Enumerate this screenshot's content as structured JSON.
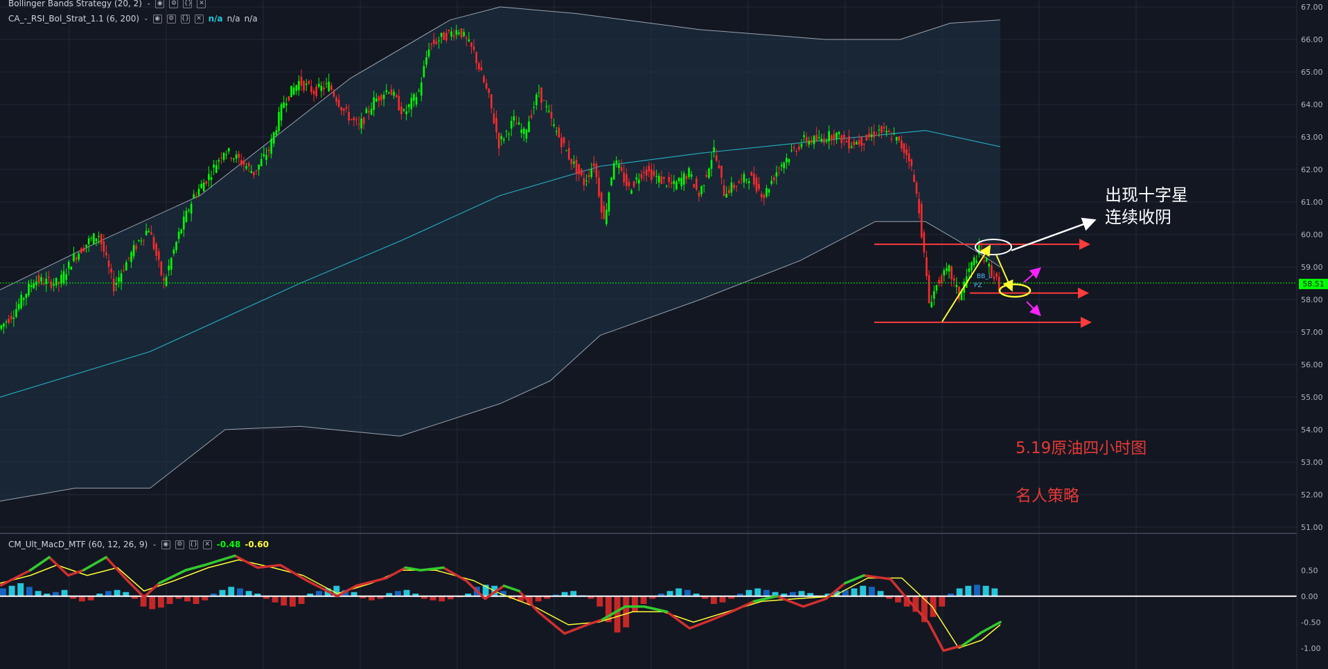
{
  "legends": {
    "bb": {
      "name": "Bollinger Bands Strategy (20, 2)"
    },
    "rsi": {
      "name": "CA_-_RSI_Bol_Strat_1.1 (6, 200)",
      "v1": "n/a",
      "v2": "n/a",
      "v3": "n/a"
    },
    "macd": {
      "name": "CM_Ult_MacD_MTF (60, 12, 26, 9)",
      "v1": "-0.48",
      "v2": "-0.60"
    }
  },
  "annotations": {
    "doji_line1": "出现十字星",
    "doji_line2": "连续收阴",
    "title": "5.19原油四小时图",
    "brand": "名人策略",
    "bb_tag": "BB_L",
    "pz_tag": "PZ"
  },
  "colors": {
    "background": "#131722",
    "up": "#00ff00",
    "down": "#ff2a2a",
    "band_fill": "#1e3347",
    "middle_band": "#26a6b8",
    "annotation_red": "#ff3b3b",
    "arrow_white": "#ffffff",
    "arrow_yellow": "#ffff33",
    "arrow_magenta": "#ff22ff"
  },
  "chart_data": [
    {
      "type": "candlestick",
      "title": "",
      "ylim": [
        51.0,
        67.0
      ],
      "y_ticks": [
        "67.00",
        "66.00",
        "65.00",
        "64.00",
        "63.00",
        "62.00",
        "61.00",
        "60.00",
        "59.00",
        "58.00",
        "57.00",
        "56.00",
        "55.00",
        "54.00",
        "53.00",
        "52.00",
        "51.00"
      ],
      "last_price": "58.51",
      "price_path": [
        [
          0,
          57.1
        ],
        [
          6,
          57.6
        ],
        [
          14,
          58.6
        ],
        [
          24,
          58.5
        ],
        [
          30,
          59.3
        ],
        [
          36,
          59.8
        ],
        [
          40,
          60.0
        ],
        [
          46,
          58.4
        ],
        [
          50,
          59.0
        ],
        [
          56,
          59.8
        ],
        [
          60,
          60.2
        ],
        [
          66,
          58.5
        ],
        [
          72,
          60.0
        ],
        [
          78,
          61.2
        ],
        [
          84,
          61.8
        ],
        [
          90,
          62.6
        ],
        [
          96,
          62.3
        ],
        [
          102,
          61.9
        ],
        [
          108,
          62.6
        ],
        [
          114,
          64.1
        ],
        [
          120,
          64.7
        ],
        [
          126,
          64.4
        ],
        [
          132,
          64.6
        ],
        [
          138,
          63.8
        ],
        [
          144,
          63.3
        ],
        [
          150,
          64.1
        ],
        [
          156,
          64.5
        ],
        [
          162,
          63.7
        ],
        [
          168,
          64.4
        ],
        [
          172,
          65.8
        ],
        [
          178,
          66.1
        ],
        [
          184,
          66.3
        ],
        [
          190,
          65.6
        ],
        [
          196,
          64.2
        ],
        [
          200,
          62.8
        ],
        [
          206,
          63.5
        ],
        [
          210,
          63.1
        ],
        [
          216,
          64.4
        ],
        [
          222,
          63.3
        ],
        [
          228,
          62.4
        ],
        [
          234,
          61.6
        ],
        [
          238,
          62.2
        ],
        [
          242,
          60.4
        ],
        [
          246,
          62.3
        ],
        [
          252,
          61.4
        ],
        [
          258,
          62.0
        ],
        [
          264,
          61.7
        ],
        [
          270,
          61.5
        ],
        [
          276,
          61.9
        ],
        [
          280,
          61.2
        ],
        [
          286,
          62.6
        ],
        [
          290,
          61.3
        ],
        [
          296,
          61.6
        ],
        [
          300,
          61.8
        ],
        [
          306,
          61.2
        ],
        [
          312,
          62.1
        ],
        [
          318,
          62.6
        ],
        [
          322,
          62.9
        ],
        [
          328,
          62.9
        ],
        [
          334,
          63.1
        ],
        [
          340,
          62.8
        ],
        [
          346,
          62.9
        ],
        [
          352,
          63.2
        ],
        [
          358,
          63.0
        ],
        [
          364,
          62.4
        ],
        [
          368,
          60.8
        ],
        [
          372,
          57.9
        ],
        [
          376,
          58.6
        ],
        [
          380,
          58.9
        ],
        [
          384,
          58.1
        ],
        [
          388,
          58.9
        ],
        [
          392,
          59.5
        ],
        [
          396,
          59.0
        ],
        [
          400,
          58.4
        ]
      ],
      "bands": {
        "upper": [
          [
            0,
            58.3
          ],
          [
            40,
            59.8
          ],
          [
            80,
            61.2
          ],
          [
            110,
            63.0
          ],
          [
            140,
            64.8
          ],
          [
            180,
            66.6
          ],
          [
            200,
            67.0
          ],
          [
            230,
            66.8
          ],
          [
            280,
            66.3
          ],
          [
            330,
            66.0
          ],
          [
            360,
            66.0
          ],
          [
            380,
            66.5
          ],
          [
            400,
            66.6
          ]
        ],
        "middle": [
          [
            0,
            55.0
          ],
          [
            60,
            56.4
          ],
          [
            120,
            58.5
          ],
          [
            160,
            59.8
          ],
          [
            200,
            61.2
          ],
          [
            240,
            62.1
          ],
          [
            280,
            62.5
          ],
          [
            330,
            62.9
          ],
          [
            370,
            63.2
          ],
          [
            400,
            62.7
          ]
        ],
        "lower": [
          [
            0,
            51.8
          ],
          [
            30,
            52.2
          ],
          [
            60,
            52.2
          ],
          [
            90,
            54.0
          ],
          [
            120,
            54.1
          ],
          [
            160,
            53.8
          ],
          [
            200,
            54.8
          ],
          [
            220,
            55.5
          ],
          [
            240,
            56.9
          ],
          [
            280,
            58.0
          ],
          [
            320,
            59.2
          ],
          [
            350,
            60.4
          ],
          [
            370,
            60.4
          ],
          [
            390,
            59.5
          ],
          [
            400,
            59.0
          ]
        ]
      }
    },
    {
      "type": "line",
      "name": "MACD",
      "ylim": [
        -1.15,
        0.85
      ],
      "y_ticks": [
        "0.50",
        "0.00",
        "-0.50",
        "-1.00"
      ],
      "macd": [
        [
          0,
          0.2
        ],
        [
          16,
          0.5
        ],
        [
          26,
          0.75
        ],
        [
          36,
          0.4
        ],
        [
          44,
          0.5
        ],
        [
          56,
          0.75
        ],
        [
          66,
          0.35
        ],
        [
          76,
          -0.02
        ],
        [
          84,
          0.25
        ],
        [
          98,
          0.5
        ],
        [
          108,
          0.6
        ],
        [
          124,
          0.78
        ],
        [
          136,
          0.55
        ],
        [
          148,
          0.6
        ],
        [
          162,
          0.3
        ],
        [
          178,
          0.0
        ],
        [
          188,
          0.2
        ],
        [
          204,
          0.35
        ],
        [
          214,
          0.55
        ],
        [
          222,
          0.5
        ],
        [
          234,
          0.55
        ],
        [
          246,
          0.3
        ],
        [
          256,
          -0.05
        ],
        [
          266,
          0.2
        ],
        [
          274,
          0.1
        ],
        [
          284,
          -0.3
        ],
        [
          298,
          -0.72
        ],
        [
          310,
          -0.55
        ],
        [
          318,
          -0.45
        ],
        [
          330,
          -0.2
        ],
        [
          340,
          -0.2
        ],
        [
          352,
          -0.3
        ],
        [
          364,
          -0.62
        ],
        [
          376,
          -0.45
        ],
        [
          386,
          -0.3
        ],
        [
          398,
          -0.1
        ],
        [
          410,
          0.0
        ],
        [
          424,
          -0.2
        ],
        [
          436,
          -0.05
        ],
        [
          446,
          0.25
        ],
        [
          456,
          0.4
        ],
        [
          470,
          0.33
        ],
        [
          480,
          -0.1
        ],
        [
          490,
          -0.5
        ],
        [
          498,
          -1.05
        ],
        [
          508,
          -0.95
        ],
        [
          518,
          -0.7
        ],
        [
          528,
          -0.5
        ]
      ],
      "signal": [
        [
          0,
          0.25
        ],
        [
          16,
          0.4
        ],
        [
          30,
          0.6
        ],
        [
          46,
          0.4
        ],
        [
          62,
          0.55
        ],
        [
          76,
          0.1
        ],
        [
          92,
          0.3
        ],
        [
          110,
          0.55
        ],
        [
          126,
          0.7
        ],
        [
          144,
          0.55
        ],
        [
          160,
          0.4
        ],
        [
          178,
          0.05
        ],
        [
          196,
          0.25
        ],
        [
          212,
          0.5
        ],
        [
          230,
          0.5
        ],
        [
          250,
          0.3
        ],
        [
          264,
          0.05
        ],
        [
          282,
          -0.2
        ],
        [
          300,
          -0.55
        ],
        [
          316,
          -0.5
        ],
        [
          334,
          -0.3
        ],
        [
          350,
          -0.3
        ],
        [
          366,
          -0.5
        ],
        [
          384,
          -0.3
        ],
        [
          402,
          -0.1
        ],
        [
          420,
          -0.05
        ],
        [
          440,
          0.0
        ],
        [
          458,
          0.35
        ],
        [
          476,
          0.35
        ],
        [
          492,
          -0.2
        ],
        [
          506,
          -1.0
        ],
        [
          518,
          -0.85
        ],
        [
          528,
          -0.55
        ]
      ],
      "histogram": [
        0.15,
        0.2,
        0.25,
        0.18,
        0.1,
        0.05,
        0.08,
        0.12,
        -0.05,
        -0.1,
        -0.08,
        0.05,
        0.1,
        0.12,
        0.08,
        -0.05,
        -0.2,
        -0.25,
        -0.22,
        -0.15,
        -0.05,
        -0.1,
        -0.15,
        -0.08,
        0.05,
        0.12,
        0.18,
        0.15,
        0.1,
        0.05,
        -0.05,
        -0.12,
        -0.18,
        -0.2,
        -0.15,
        0.05,
        0.1,
        0.15,
        0.2,
        0.12,
        0.08,
        -0.04,
        -0.08,
        -0.05,
        0.06,
        0.1,
        0.12,
        0.05,
        -0.05,
        -0.08,
        -0.1,
        -0.06,
        -0.02,
        0.05,
        0.18,
        0.22,
        0.2,
        0.1,
        -0.05,
        -0.1,
        -0.15,
        -0.1,
        -0.05,
        0.03,
        0.08,
        0.1,
        0.02,
        -0.05,
        -0.2,
        -0.5,
        -0.7,
        -0.6,
        -0.3,
        -0.15,
        -0.05,
        0.05,
        0.1,
        0.15,
        0.12,
        0.05,
        -0.05,
        -0.15,
        -0.12,
        -0.05,
        0.05,
        0.12,
        0.15,
        0.12,
        0.08,
        0.05,
        0.08,
        0.1,
        0.06,
        -0.03,
        0.05,
        0.1,
        0.12,
        0.15,
        0.2,
        0.18,
        0.1,
        -0.05,
        -0.12,
        -0.2,
        -0.3,
        -0.5,
        -0.4,
        -0.2,
        0.05,
        0.15,
        0.2,
        0.22,
        0.2,
        0.15
      ]
    }
  ]
}
